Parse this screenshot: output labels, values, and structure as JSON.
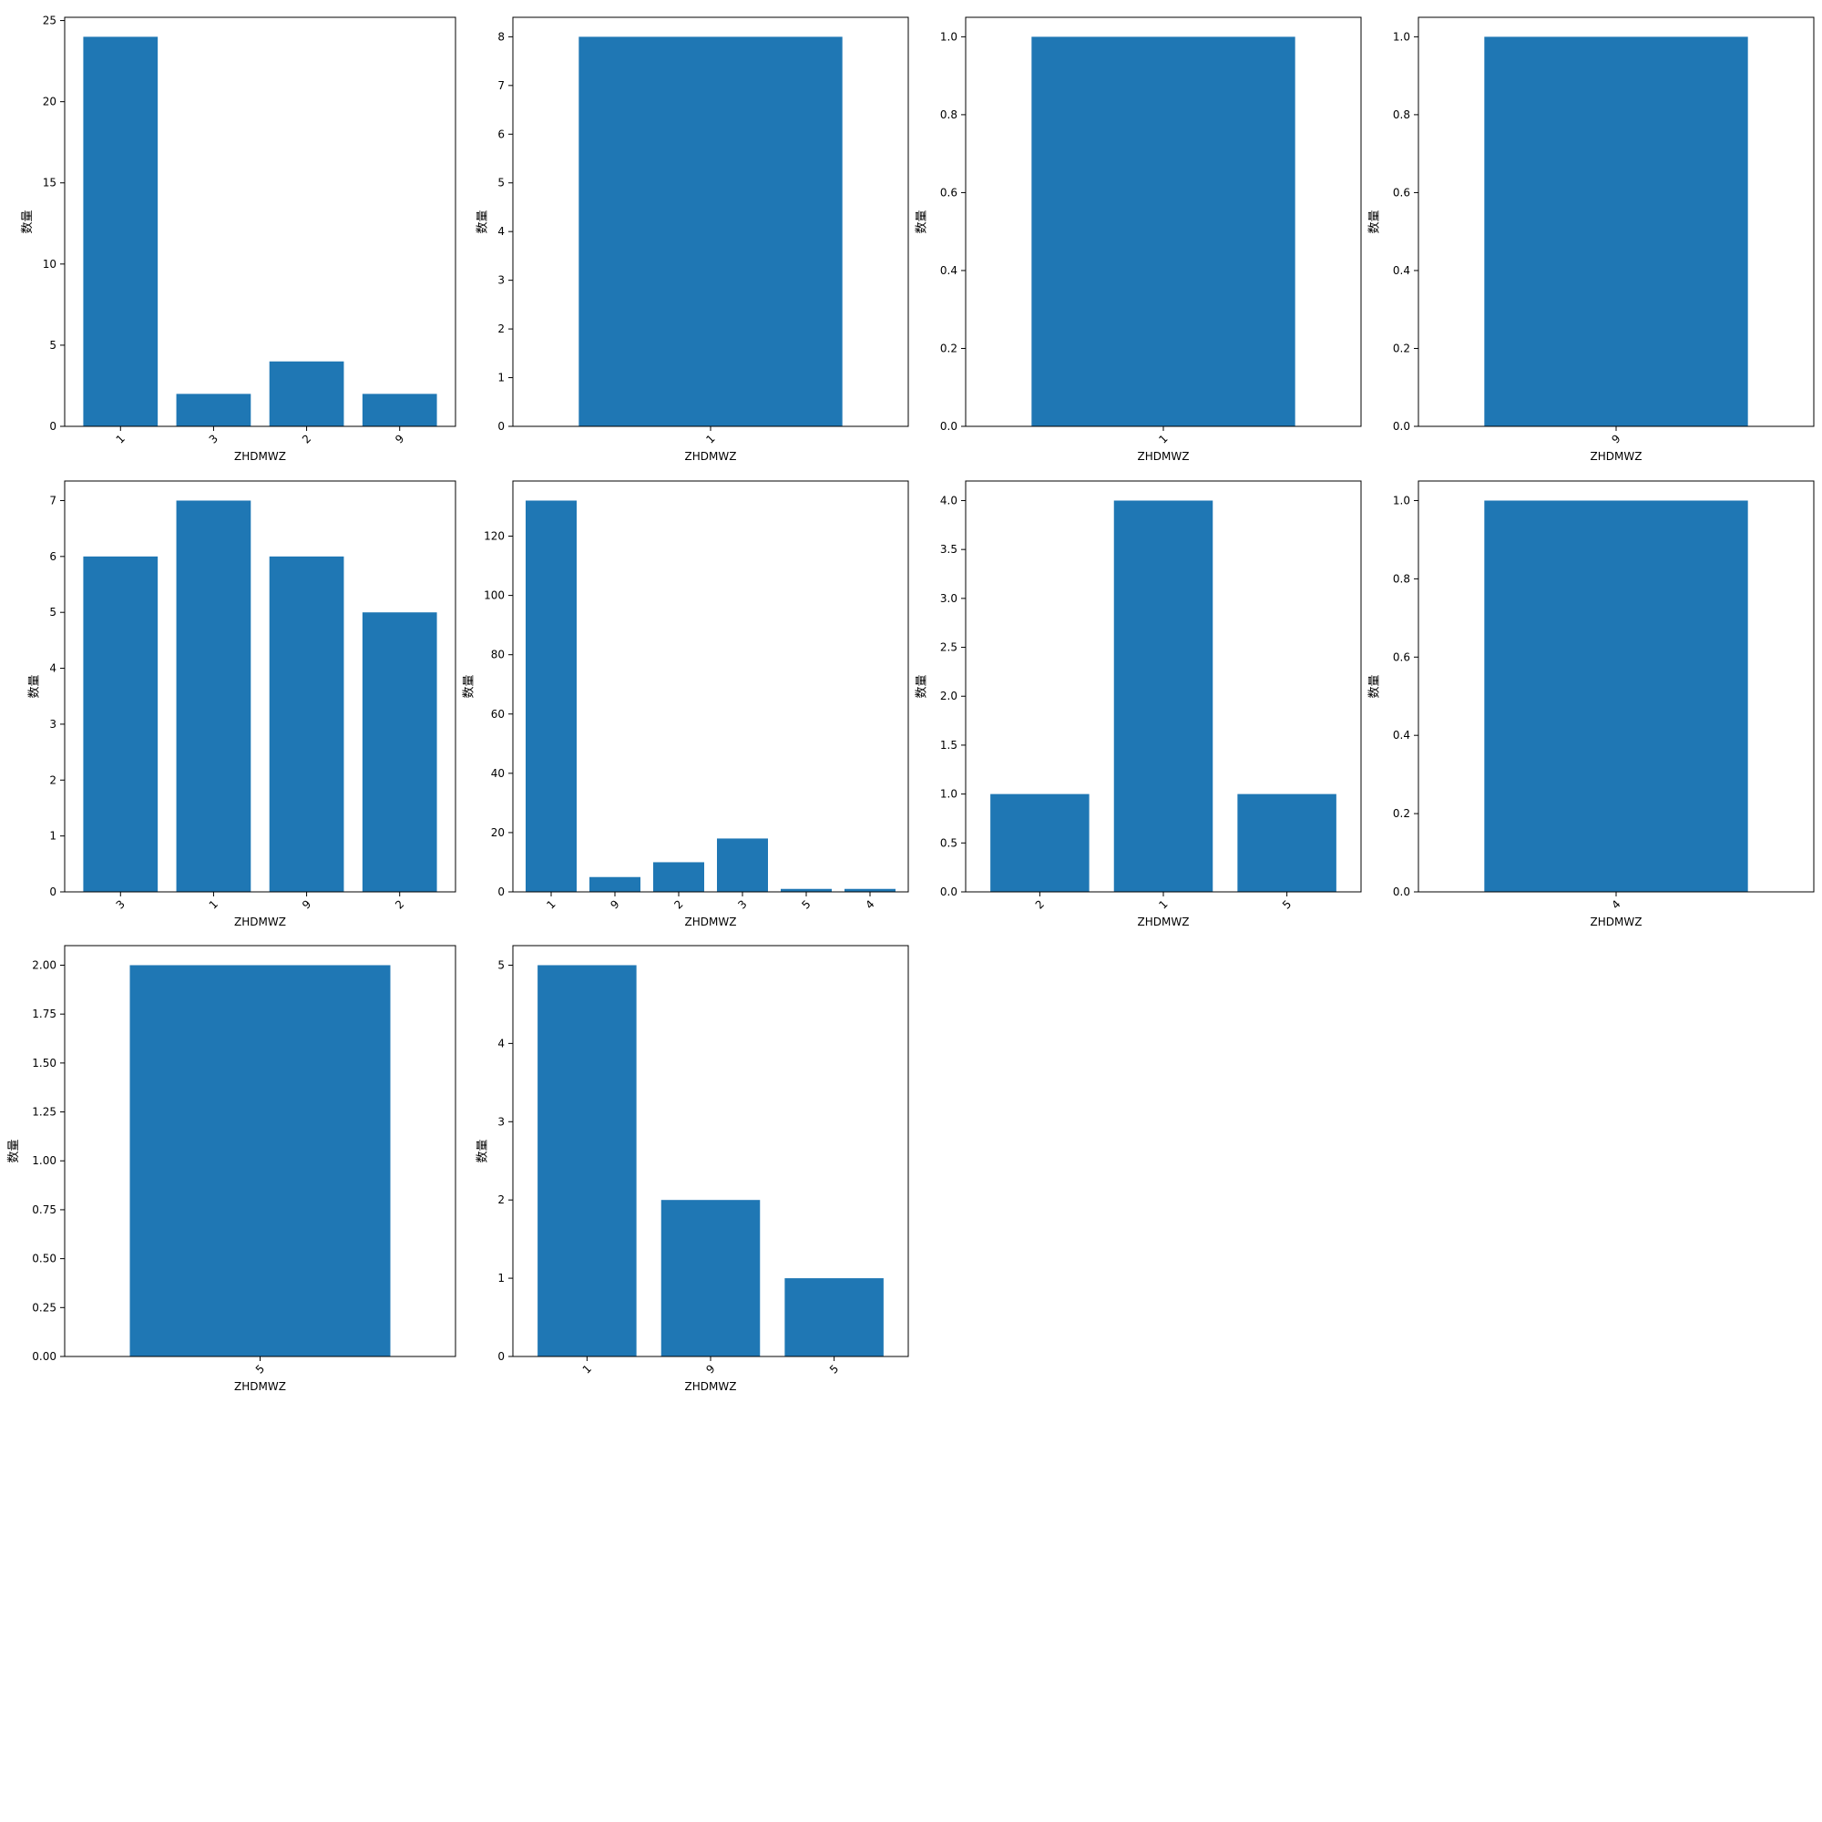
{
  "colors": {
    "bar": "#1f77b4",
    "axis": "#000000",
    "background": "#ffffff"
  },
  "chart_data": [
    {
      "type": "bar",
      "xlabel": "ZHDMWZ",
      "ylabel": "数量",
      "categories": [
        "1",
        "3",
        "2",
        "9"
      ],
      "values": [
        24,
        2,
        4,
        2
      ],
      "ylim": [
        0,
        25.2
      ],
      "yticks": [
        "0",
        "5",
        "10",
        "15",
        "20",
        "25"
      ],
      "ytick_values": [
        0,
        5,
        10,
        15,
        20,
        25
      ]
    },
    {
      "type": "bar",
      "xlabel": "ZHDMWZ",
      "ylabel": "数量",
      "categories": [
        "1"
      ],
      "values": [
        8
      ],
      "ylim": [
        0,
        8.4
      ],
      "yticks": [
        "0",
        "1",
        "2",
        "3",
        "4",
        "5",
        "6",
        "7",
        "8"
      ],
      "ytick_values": [
        0,
        1,
        2,
        3,
        4,
        5,
        6,
        7,
        8
      ]
    },
    {
      "type": "bar",
      "xlabel": "ZHDMWZ",
      "ylabel": "数量",
      "categories": [
        "1"
      ],
      "values": [
        1
      ],
      "ylim": [
        0,
        1.05
      ],
      "yticks": [
        "0.0",
        "0.2",
        "0.4",
        "0.6",
        "0.8",
        "1.0"
      ],
      "ytick_values": [
        0,
        0.2,
        0.4,
        0.6,
        0.8,
        1.0
      ]
    },
    {
      "type": "bar",
      "xlabel": "ZHDMWZ",
      "ylabel": "数量",
      "categories": [
        "9"
      ],
      "values": [
        1
      ],
      "ylim": [
        0,
        1.05
      ],
      "yticks": [
        "0.0",
        "0.2",
        "0.4",
        "0.6",
        "0.8",
        "1.0"
      ],
      "ytick_values": [
        0,
        0.2,
        0.4,
        0.6,
        0.8,
        1.0
      ]
    },
    {
      "type": "bar",
      "xlabel": "ZHDMWZ",
      "ylabel": "数量",
      "categories": [
        "3",
        "1",
        "9",
        "2"
      ],
      "values": [
        6,
        7,
        6,
        5
      ],
      "ylim": [
        0,
        7.35
      ],
      "yticks": [
        "0",
        "1",
        "2",
        "3",
        "4",
        "5",
        "6",
        "7"
      ],
      "ytick_values": [
        0,
        1,
        2,
        3,
        4,
        5,
        6,
        7
      ]
    },
    {
      "type": "bar",
      "xlabel": "ZHDMWZ",
      "ylabel": "数量",
      "categories": [
        "1",
        "9",
        "2",
        "3",
        "5",
        "4"
      ],
      "values": [
        132,
        5,
        10,
        18,
        1,
        1
      ],
      "ylim": [
        0,
        138.6
      ],
      "yticks": [
        "0",
        "20",
        "40",
        "60",
        "80",
        "100",
        "120"
      ],
      "ytick_values": [
        0,
        20,
        40,
        60,
        80,
        100,
        120
      ]
    },
    {
      "type": "bar",
      "xlabel": "ZHDMWZ",
      "ylabel": "数量",
      "categories": [
        "2",
        "1",
        "5"
      ],
      "values": [
        1,
        4,
        1
      ],
      "ylim": [
        0,
        4.2
      ],
      "yticks": [
        "0.0",
        "0.5",
        "1.0",
        "1.5",
        "2.0",
        "2.5",
        "3.0",
        "3.5",
        "4.0"
      ],
      "ytick_values": [
        0,
        0.5,
        1.0,
        1.5,
        2.0,
        2.5,
        3.0,
        3.5,
        4.0
      ]
    },
    {
      "type": "bar",
      "xlabel": "ZHDMWZ",
      "ylabel": "数量",
      "categories": [
        "4"
      ],
      "values": [
        1
      ],
      "ylim": [
        0,
        1.05
      ],
      "yticks": [
        "0.0",
        "0.2",
        "0.4",
        "0.6",
        "0.8",
        "1.0"
      ],
      "ytick_values": [
        0,
        0.2,
        0.4,
        0.6,
        0.8,
        1.0
      ]
    },
    {
      "type": "bar",
      "xlabel": "ZHDMWZ",
      "ylabel": "数量",
      "categories": [
        "5"
      ],
      "values": [
        2
      ],
      "ylim": [
        0,
        2.1
      ],
      "yticks": [
        "0.00",
        "0.25",
        "0.50",
        "0.75",
        "1.00",
        "1.25",
        "1.50",
        "1.75",
        "2.00"
      ],
      "ytick_values": [
        0,
        0.25,
        0.5,
        0.75,
        1.0,
        1.25,
        1.5,
        1.75,
        2.0
      ]
    },
    {
      "type": "bar",
      "xlabel": "ZHDMWZ",
      "ylabel": "数量",
      "categories": [
        "1",
        "9",
        "5"
      ],
      "values": [
        5,
        2,
        1
      ],
      "ylim": [
        0,
        5.25
      ],
      "yticks": [
        "0",
        "1",
        "2",
        "3",
        "4",
        "5"
      ],
      "ytick_values": [
        0,
        1,
        2,
        3,
        4,
        5
      ]
    }
  ]
}
